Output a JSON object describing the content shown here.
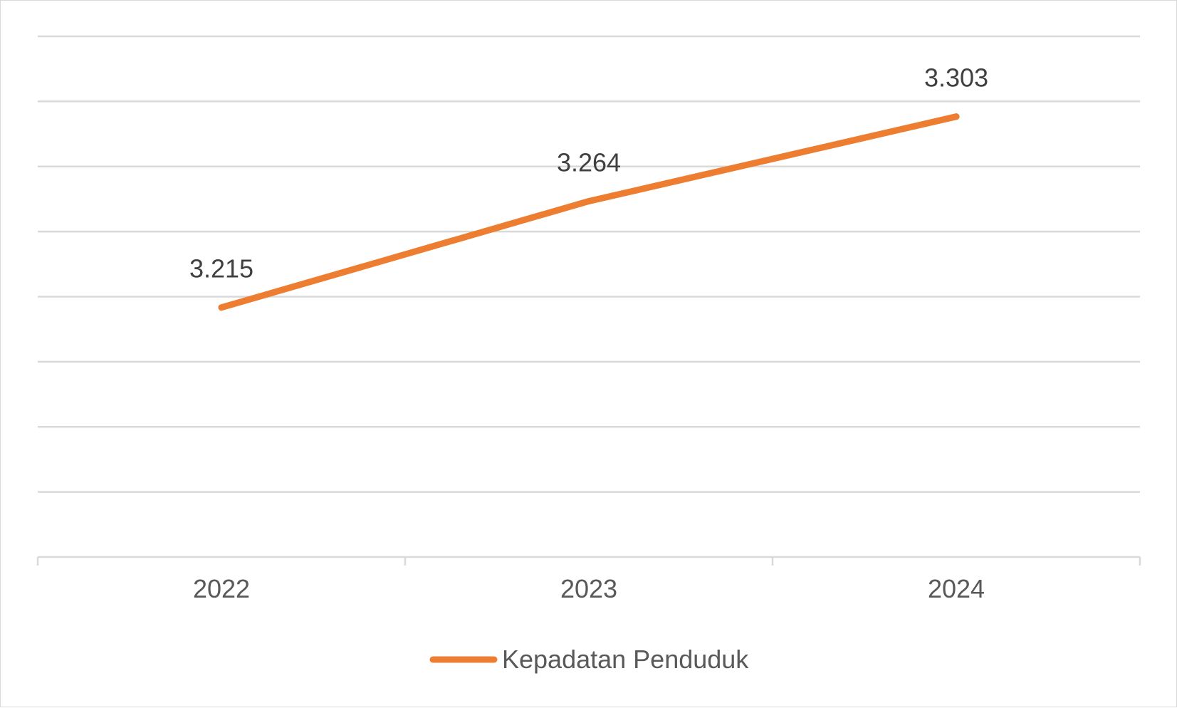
{
  "chart_data": {
    "type": "line",
    "categories": [
      "2022",
      "2023",
      "2024"
    ],
    "series": [
      {
        "name": "Kepadatan Penduduk",
        "values": [
          3.215,
          3.264,
          3.303
        ],
        "labels": [
          "3.215",
          "3.264",
          "3.303"
        ],
        "color": "#ed7d31"
      }
    ],
    "ylim": [
      3.1,
      3.34
    ],
    "grid": true,
    "legend": "bottom"
  }
}
